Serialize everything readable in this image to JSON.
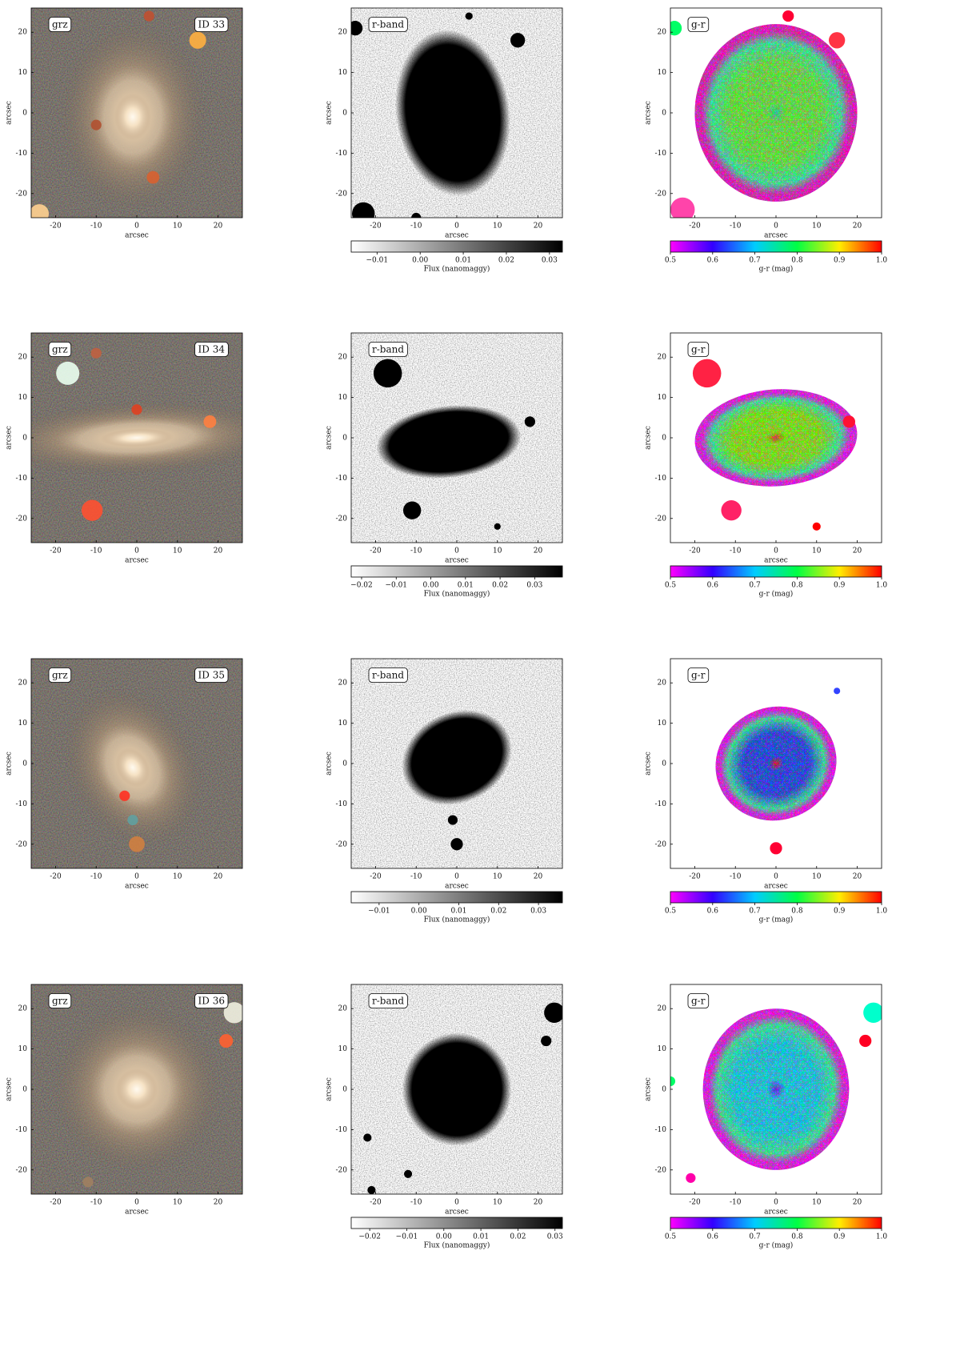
{
  "axis_label": "arcsec",
  "xlim": [
    -26,
    26
  ],
  "ylim": [
    -26,
    26
  ],
  "xticks": [
    -20,
    -10,
    0,
    10,
    20
  ],
  "yticks": [
    -20,
    -10,
    0,
    10,
    20
  ],
  "grz_label": "grz",
  "rband_label": "r-band",
  "gr_label": "g-r",
  "flux_label": "Flux (nanomaggy)",
  "color_label": "g-r (mag)",
  "color_lim": [
    0.5,
    1.0
  ],
  "color_ticks": [
    0.5,
    0.6,
    0.7,
    0.8,
    0.9,
    {
      "value": 1,
      "label": "1.0"
    }
  ],
  "rows": [
    {
      "id": "ID 33",
      "flux_lim": [
        -0.016,
        0.033
      ],
      "flux_ticks": [
        {
          "value": -0.01,
          "label": "−0.01"
        },
        {
          "value": 0,
          "label": "0.00"
        },
        0.01,
        0.02,
        0.03
      ]
    },
    {
      "id": "ID 34",
      "flux_lim": [
        -0.023,
        0.038
      ],
      "flux_ticks": [
        {
          "value": -0.02,
          "label": "−0.02"
        },
        {
          "value": -0.01,
          "label": "−0.01"
        },
        {
          "value": 0,
          "label": "0.00"
        },
        0.01,
        0.02,
        0.03
      ]
    },
    {
      "id": "ID 35",
      "flux_lim": [
        -0.017,
        0.036
      ],
      "flux_ticks": [
        {
          "value": -0.01,
          "label": "−0.01"
        },
        {
          "value": 0,
          "label": "0.00"
        },
        0.01,
        0.02,
        0.03
      ]
    },
    {
      "id": "ID 36",
      "flux_lim": [
        -0.025,
        0.032
      ],
      "flux_ticks": [
        {
          "value": -0.02,
          "label": "−0.02"
        },
        {
          "value": -0.01,
          "label": "−0.01"
        },
        {
          "value": 0,
          "label": "0.00"
        },
        0.01,
        0.02,
        0.03
      ]
    }
  ]
}
